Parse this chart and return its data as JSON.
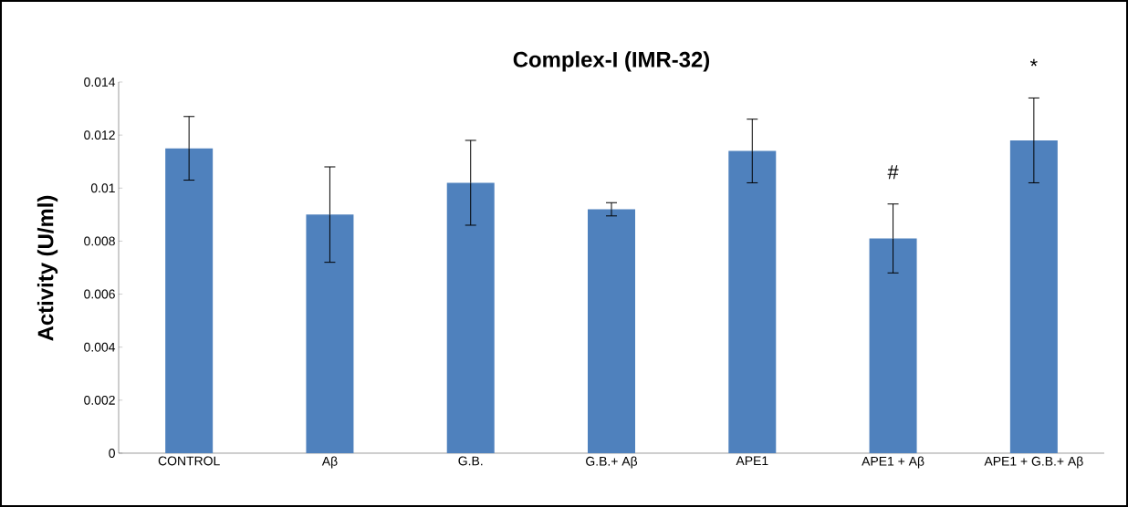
{
  "chart_data": {
    "type": "bar",
    "title": "Complex-I (IMR-32)",
    "ylabel": "Activity (U/ml)",
    "categories": [
      "CONTROL",
      "Aβ",
      "G.B.",
      "G.B.+ Aβ",
      "APE1",
      "APE1 + Aβ",
      "APE1 + G.B.+ Aβ"
    ],
    "values": [
      0.0115,
      0.009,
      0.0102,
      0.0092,
      0.0114,
      0.0081,
      0.0118
    ],
    "errors": [
      0.0012,
      0.0018,
      0.0016,
      0.00025,
      0.0012,
      0.0013,
      0.0016
    ],
    "color": "#4f81bd",
    "ylim": [
      0,
      0.014
    ],
    "yticks": [
      0,
      0.002,
      0.004,
      0.006,
      0.008,
      0.01,
      0.012,
      0.014
    ],
    "annotations": [
      "#",
      "*"
    ],
    "grid": false
  }
}
